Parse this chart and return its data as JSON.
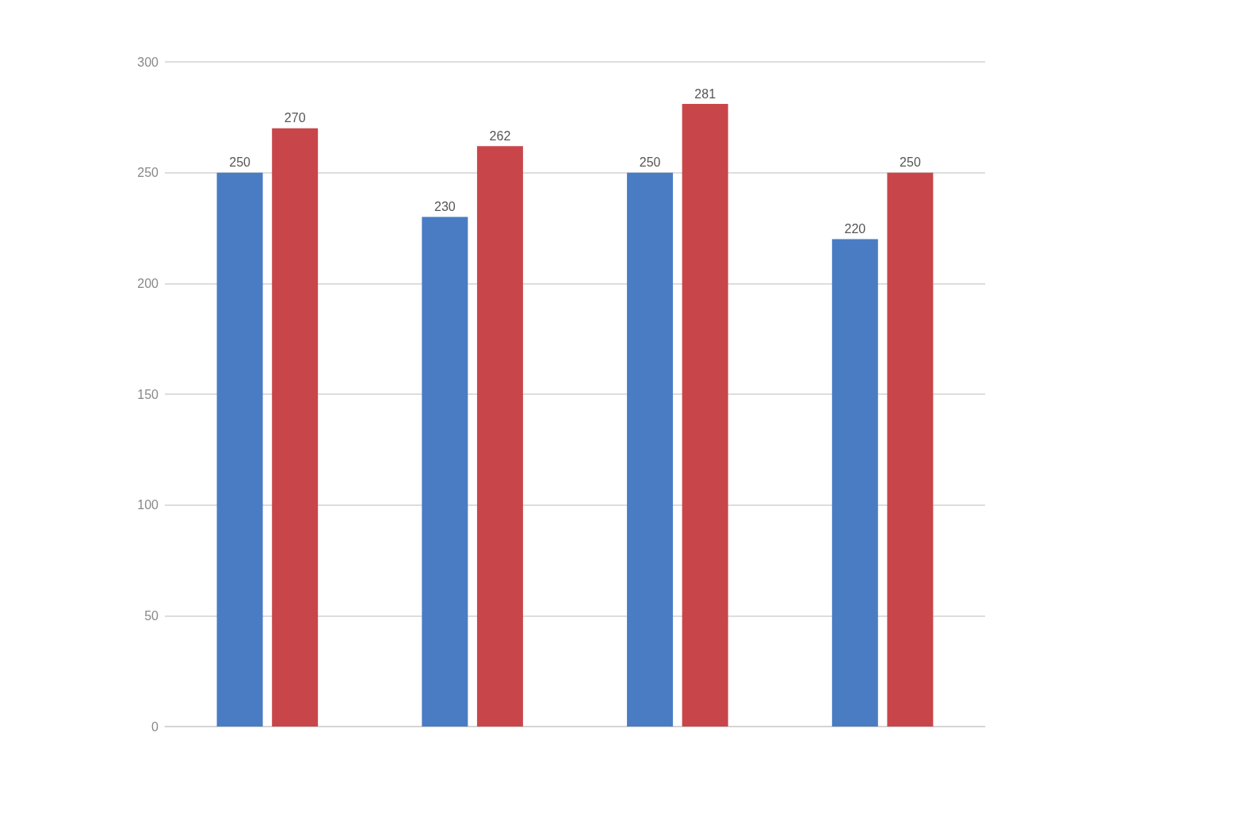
{
  "chart_data": {
    "type": "bar",
    "categories": [
      null,
      null,
      null,
      null
    ],
    "series": [
      {
        "color": "#4a7cc4",
        "values": [
          250,
          230,
          250,
          220
        ]
      },
      {
        "color": "#c8464a",
        "values": [
          270,
          262,
          281,
          250
        ]
      }
    ],
    "ylim": [
      0,
      300
    ],
    "yticks": [
      0,
      50,
      100,
      150,
      200,
      250,
      300
    ],
    "grid": "y",
    "data_labels": true
  }
}
